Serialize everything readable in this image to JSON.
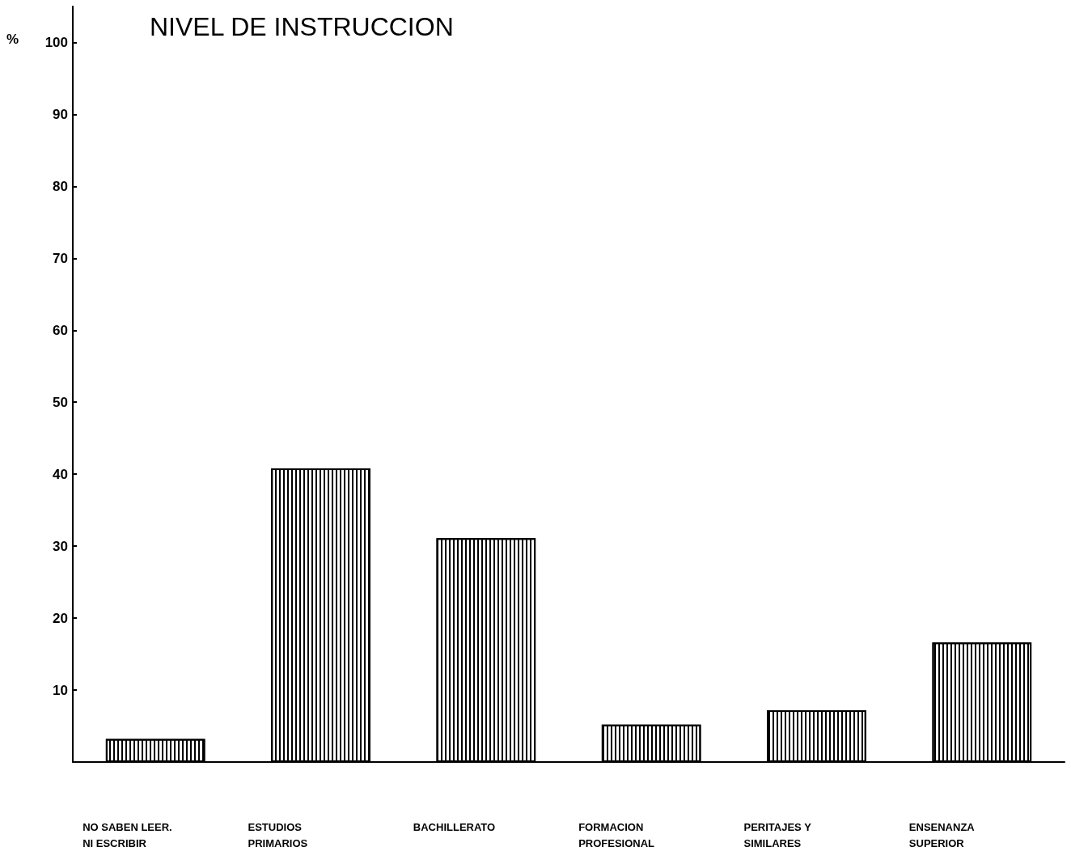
{
  "chart_data": {
    "type": "bar",
    "title": "NIVEL DE INSTRUCCION",
    "ylabel": "%",
    "categories": [
      "NO SABEN LEER.\nNI ESCRIBIR",
      "ESTUDIOS\nPRIMARIOS",
      "BACHILLERATO",
      "FORMACION\nPROFESIONAL",
      "PERITAJES Y\nSIMILARES",
      "ENSENANZA\nSUPERIOR"
    ],
    "values": [
      3.2,
      40.8,
      31.1,
      5.2,
      7.2,
      16.6
    ],
    "color": "#ffffff",
    "ylim": [
      0,
      105
    ],
    "yticks": [
      10,
      20,
      30,
      40,
      50,
      60,
      70,
      80,
      90,
      100
    ],
    "grid": false
  }
}
